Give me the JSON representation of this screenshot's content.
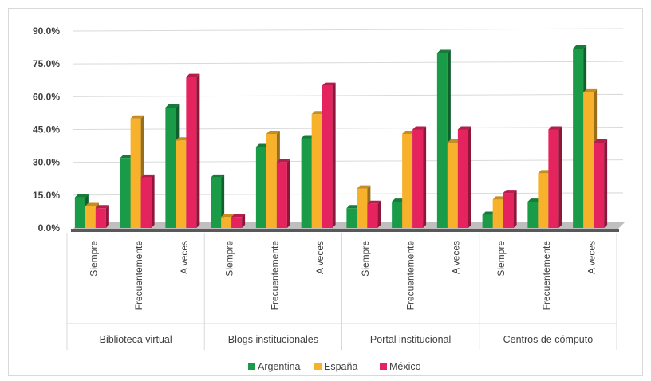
{
  "chart_data": {
    "type": "bar",
    "title": "",
    "xlabel": "",
    "ylabel": "",
    "ylim": [
      0,
      90
    ],
    "y_ticks": [
      "0.0%",
      "15.0%",
      "30.0%",
      "45.0%",
      "60.0%",
      "75.0%",
      "90.0%"
    ],
    "y_tick_values": [
      0,
      15,
      30,
      45,
      60,
      75,
      90
    ],
    "grid": true,
    "legend_position": "bottom",
    "groups": [
      "Biblioteca virtual",
      "Blogs institucionales",
      "Portal institucional",
      "Centros de cómputo"
    ],
    "subcategories": [
      "Siempre",
      "Frecuentemente",
      "A veces"
    ],
    "series": [
      {
        "name": "Argentina",
        "color": "#1a9b48",
        "values": [
          14,
          32,
          55,
          23,
          37,
          41,
          9,
          12,
          80,
          6,
          12,
          82
        ]
      },
      {
        "name": "España",
        "color": "#f7b12b",
        "values": [
          10,
          50,
          40,
          5,
          43,
          52,
          18,
          43,
          39,
          13,
          25,
          62
        ]
      },
      {
        "name": "México",
        "color": "#e5245f",
        "values": [
          9,
          23,
          69,
          5,
          30,
          65,
          11,
          45,
          45,
          16,
          45,
          39
        ]
      }
    ]
  }
}
